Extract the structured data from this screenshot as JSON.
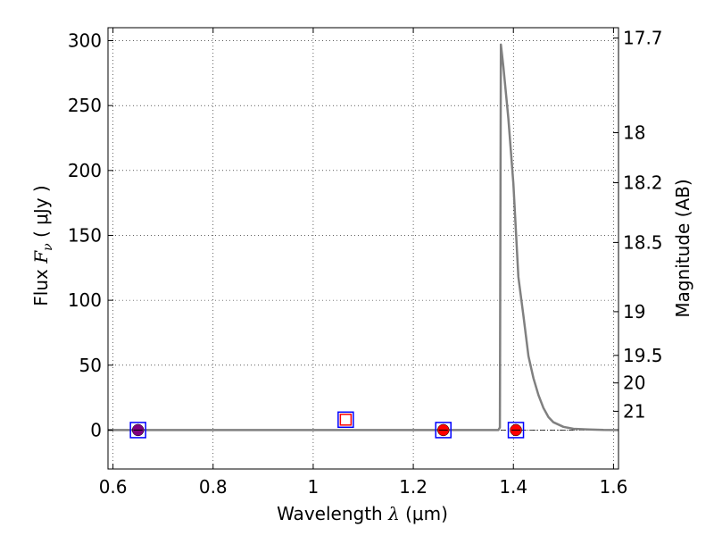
{
  "chart_data": {
    "type": "line",
    "xlabel": "Wavelength",
    "xlabel_symbol": "λ",
    "xlabel_unit": "(μm)",
    "ylabel": "Flux",
    "ylabel_symbol": "F",
    "ylabel_subscript": "ν",
    "ylabel_unit": "( μJy )",
    "y2label": "Magnitude (AB)",
    "xlim": [
      0.59,
      1.61
    ],
    "ylim": [
      -30,
      310
    ],
    "grid": true,
    "x_ticks": [
      0.6,
      0.8,
      1.0,
      1.2,
      1.4,
      1.6
    ],
    "x_tick_labels": [
      "0.6",
      "0.8",
      "1",
      "1.2",
      "1.4",
      "1.6"
    ],
    "y_ticks": [
      0,
      50,
      100,
      150,
      200,
      250,
      300
    ],
    "y_tick_labels": [
      "0",
      "50",
      "100",
      "150",
      "200",
      "250",
      "300"
    ],
    "mag_ticks": [
      17.7,
      18,
      18.2,
      18.5,
      19,
      19.5,
      20,
      21
    ],
    "mag_tick_labels": [
      "17.7",
      "18",
      "18.2",
      "18.5",
      "19",
      "19.5",
      "20",
      "21"
    ],
    "mag_zero_point_ujy": 3631000000,
    "series": [
      {
        "kind": "line",
        "color": "#808080",
        "x": [
          0.59,
          1.37,
          1.373,
          1.375,
          1.38,
          1.39,
          1.4,
          1.41,
          1.42,
          1.43,
          1.44,
          1.45,
          1.46,
          1.47,
          1.48,
          1.5,
          1.52,
          1.55,
          1.58,
          1.61
        ],
        "y": [
          0,
          0,
          2,
          297,
          280,
          240,
          190,
          118,
          88,
          57,
          40,
          27,
          17,
          10,
          6,
          2.5,
          1,
          0.4,
          0.1,
          0
        ]
      },
      {
        "kind": "markers",
        "marker": "square-open",
        "color": "#0000ff",
        "x": [
          0.65,
          1.065,
          1.26,
          1.405
        ],
        "y": [
          0,
          8,
          0,
          0
        ]
      },
      {
        "kind": "markers",
        "marker": "square-open",
        "color": "#ff0000",
        "x": [
          1.065
        ],
        "y": [
          8
        ]
      },
      {
        "kind": "markers",
        "marker": "circle",
        "colors": [
          "#800080",
          "#ff0000",
          "#ff0000"
        ],
        "x": [
          0.65,
          1.26,
          1.405
        ],
        "y": [
          0,
          0,
          0
        ]
      }
    ],
    "reference_line": {
      "y": 0,
      "style": "dash-dot",
      "color": "#000000"
    }
  }
}
